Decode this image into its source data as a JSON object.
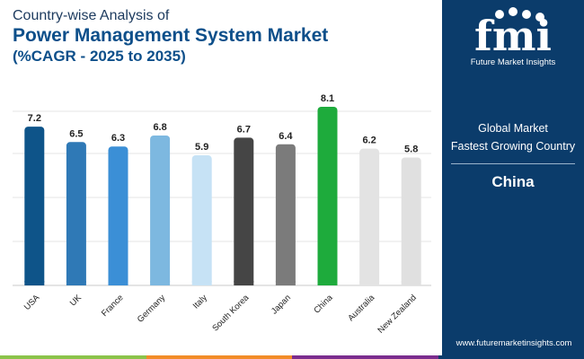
{
  "title": {
    "line1": "Country-wise Analysis of",
    "line2": "Power Management System Market",
    "line3": "(%CAGR - 2025 to 2035)"
  },
  "chart_data": {
    "type": "bar",
    "categories": [
      "USA",
      "UK",
      "France",
      "Germany",
      "Italy",
      "South Korea",
      "Japan",
      "China",
      "Australia",
      "New Zealand"
    ],
    "values": [
      7.2,
      6.5,
      6.3,
      6.8,
      5.9,
      6.7,
      6.4,
      8.1,
      6.2,
      5.8
    ],
    "colors": [
      "#0e5489",
      "#2f79b6",
      "#3b8fd6",
      "#7db8e0",
      "#c6e2f5",
      "#454545",
      "#7b7b7b",
      "#1eab3c",
      "#e3e3e3",
      "#e0e0e0"
    ],
    "ylim": [
      0,
      9
    ],
    "gridlines": [
      0,
      2,
      4,
      6,
      8
    ],
    "xlabel": "",
    "ylabel": "",
    "title": "Country-wise Analysis of Power Management System Market (%CAGR - 2025 to 2035)"
  },
  "side_panel": {
    "logo_letters": "fmi",
    "logo_text": "Future Market Insights",
    "line1": "Global Market",
    "line2": "Fastest Growing Country",
    "country": "China",
    "website": "www.futuremarketinsights.com",
    "background": "#0b3c6b"
  },
  "bottom_strip_colors": [
    "#8bc34a",
    "#f28c28",
    "#7b2d8e",
    "#0b3c6b"
  ]
}
